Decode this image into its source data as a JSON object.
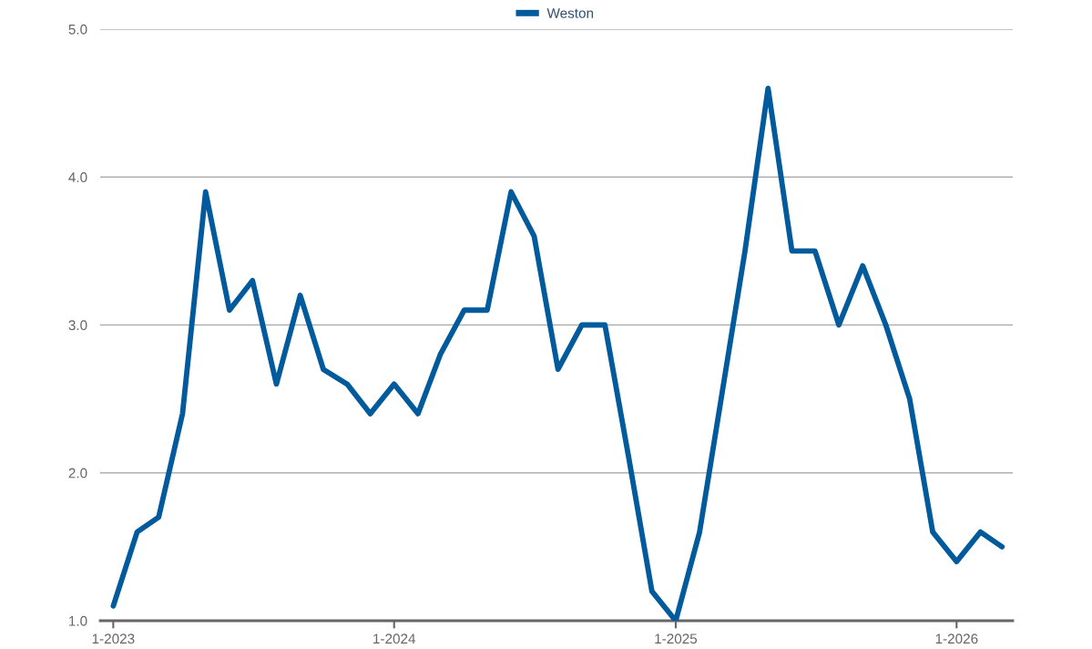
{
  "chart_data": {
    "type": "line",
    "x": [
      "2023-01",
      "2023-02",
      "2023-03",
      "2023-04",
      "2023-05",
      "2023-06",
      "2023-07",
      "2023-08",
      "2023-09",
      "2023-10",
      "2023-11",
      "2023-12",
      "2024-01",
      "2024-02",
      "2024-03",
      "2024-04",
      "2024-05",
      "2024-06",
      "2024-07",
      "2024-08",
      "2024-09",
      "2024-10",
      "2024-11",
      "2024-12",
      "2025-01",
      "2025-02",
      "2025-03",
      "2025-04",
      "2025-05",
      "2025-06",
      "2025-07",
      "2025-08",
      "2025-09",
      "2025-10",
      "2025-11",
      "2025-12",
      "2026-01",
      "2026-02",
      "2026-03"
    ],
    "series": [
      {
        "name": "Weston",
        "color": "#005a9c",
        "values": [
          1.1,
          1.6,
          1.7,
          2.4,
          3.9,
          3.1,
          3.3,
          2.6,
          3.2,
          2.7,
          2.6,
          2.4,
          2.6,
          2.4,
          2.8,
          3.1,
          3.1,
          3.9,
          3.6,
          2.7,
          3.0,
          3.0,
          2.1,
          1.2,
          1.0,
          1.6,
          2.5,
          3.5,
          4.6,
          3.5,
          3.5,
          3.0,
          3.4,
          3.0,
          2.5,
          1.6,
          1.4,
          1.6,
          1.5
        ]
      }
    ],
    "xlim": [
      "2022-12-15",
      "2026-03-15"
    ],
    "xticks": [
      {
        "value": "2023-01",
        "label": "1-2023"
      },
      {
        "value": "2024-01",
        "label": "1-2024"
      },
      {
        "value": "2025-01",
        "label": "1-2025"
      },
      {
        "value": "2026-01",
        "label": "1-2026"
      }
    ],
    "ylim": [
      1.0,
      5.0
    ],
    "yticks": [
      {
        "value": 1.0,
        "label": "1.0"
      },
      {
        "value": 2.0,
        "label": "2.0"
      },
      {
        "value": 3.0,
        "label": "3.0"
      },
      {
        "value": 4.0,
        "label": "4.0"
      },
      {
        "value": 5.0,
        "label": "5.0"
      }
    ],
    "grid": "y",
    "legend": "top",
    "marker": "none",
    "line_style": "solid"
  }
}
